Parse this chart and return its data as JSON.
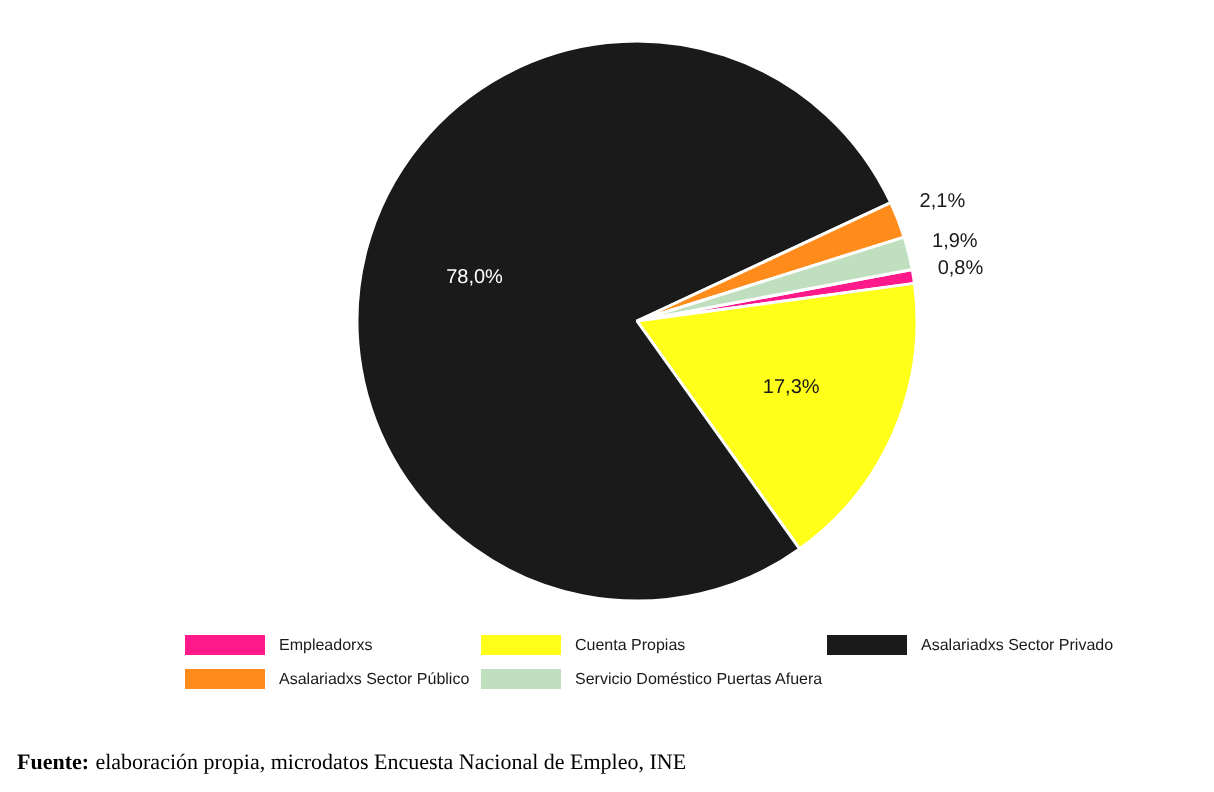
{
  "chart_data": {
    "type": "pie",
    "categories": [
      "Empleadorxs",
      "Cuenta Propias",
      "Asalariadxs Sector Privado",
      "Asalariadxs Sector Público",
      "Servicio Doméstico Puertas Afuera"
    ],
    "values": [
      0.8,
      17.3,
      78.0,
      2.1,
      1.9
    ],
    "colors": [
      "#ff1a8c",
      "#ffff1a",
      "#1a1a1a",
      "#ff8c1a",
      "#bfdfbf"
    ],
    "value_labels": [
      "0,8%",
      "17,3%",
      "78,0%",
      "2,1%",
      "1,9%"
    ],
    "legend": "bottom",
    "annotations": [
      "Fuente: elaboración propia, microdatos Encuesta Nacional de Empleo, INE"
    ]
  }
}
